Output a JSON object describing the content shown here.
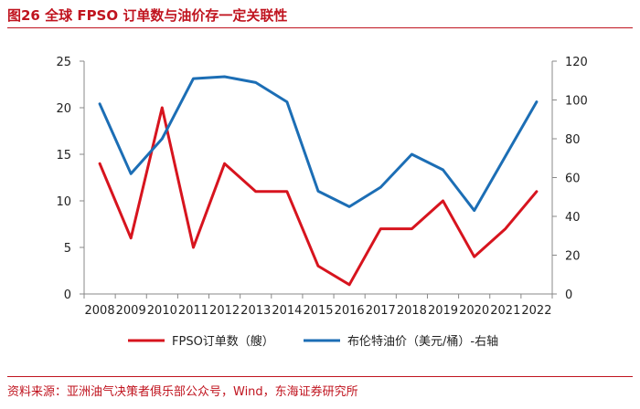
{
  "header": {
    "title": "图26 全球 FPSO 订单数与油价存一定关联性"
  },
  "footer": {
    "source": "资料来源：亚洲油气决策者俱乐部公众号，Wind，东海证券研究所"
  },
  "chart_data": {
    "type": "line",
    "title": "图26 全球 FPSO 订单数与油价存一定关联性",
    "categories": [
      "2008",
      "2009",
      "2010",
      "2011",
      "2012",
      "2013",
      "2014",
      "2015",
      "2016",
      "2017",
      "2018",
      "2019",
      "2020",
      "2021",
      "2022"
    ],
    "y_left": {
      "range": [
        0,
        25
      ],
      "ticks": [
        0,
        5,
        10,
        15,
        20,
        25
      ]
    },
    "y_right": {
      "range": [
        0,
        120
      ],
      "ticks": [
        0,
        20,
        40,
        60,
        80,
        100,
        120
      ]
    },
    "grid": false,
    "legend_position": "bottom",
    "series": [
      {
        "name": "FPSO订单数（艘）",
        "axis": "left",
        "color": "#d7141e",
        "values": [
          14,
          6,
          20,
          5,
          14,
          11,
          11,
          3,
          1,
          7,
          7,
          10,
          4,
          7,
          11
        ]
      },
      {
        "name": "布伦特油价（美元/桶）-右轴",
        "axis": "right",
        "color": "#1c6eb5",
        "values": [
          98,
          62,
          80,
          111,
          112,
          109,
          99,
          53,
          45,
          55,
          72,
          64,
          43,
          71,
          99
        ]
      }
    ]
  }
}
